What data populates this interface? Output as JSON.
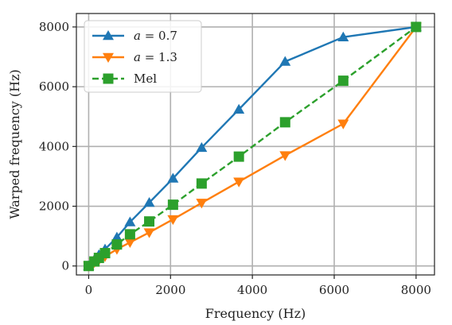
{
  "chart_data": {
    "type": "line",
    "xlabel": "Frequency (Hz)",
    "ylabel": "Warped frequency (Hz)",
    "xlim": [
      -300,
      8450
    ],
    "ylim": [
      -300,
      8450
    ],
    "xticks": [
      0,
      2000,
      4000,
      6000,
      8000
    ],
    "yticks": [
      0,
      2000,
      4000,
      6000,
      8000
    ],
    "xtick_labels": [
      "0",
      "2000",
      "4000",
      "6000",
      "8000"
    ],
    "ytick_labels": [
      "0",
      "2000",
      "4000",
      "6000",
      "8000"
    ],
    "grid": true,
    "legend_position": "top-left",
    "x": [
      0,
      140,
      250,
      400,
      690,
      1010,
      1480,
      2060,
      2760,
      3670,
      4800,
      6220,
      8000
    ],
    "series": [
      {
        "name_prefix": "a",
        "name_suffix": " = 0.7",
        "name": "a = 0.7",
        "color": "#1f77b4",
        "marker": "triangle-up",
        "linestyle": "solid",
        "values": [
          0,
          220,
          370,
          560,
          960,
          1470,
          2120,
          2930,
          3960,
          5240,
          6840,
          7660,
          8000
        ]
      },
      {
        "name_prefix": "a",
        "name_suffix": " = 1.3",
        "name": "a = 1.3",
        "color": "#ff7f0e",
        "marker": "triangle-down",
        "linestyle": "solid",
        "values": [
          0,
          120,
          200,
          320,
          560,
          790,
          1120,
          1560,
          2110,
          2820,
          3700,
          4760,
          8000
        ]
      },
      {
        "name": "Mel",
        "color": "#2ca02c",
        "marker": "square",
        "linestyle": "dashed",
        "values": [
          0,
          150,
          270,
          430,
          720,
          1060,
          1490,
          2050,
          2760,
          3660,
          4810,
          6200,
          8000
        ]
      }
    ]
  }
}
